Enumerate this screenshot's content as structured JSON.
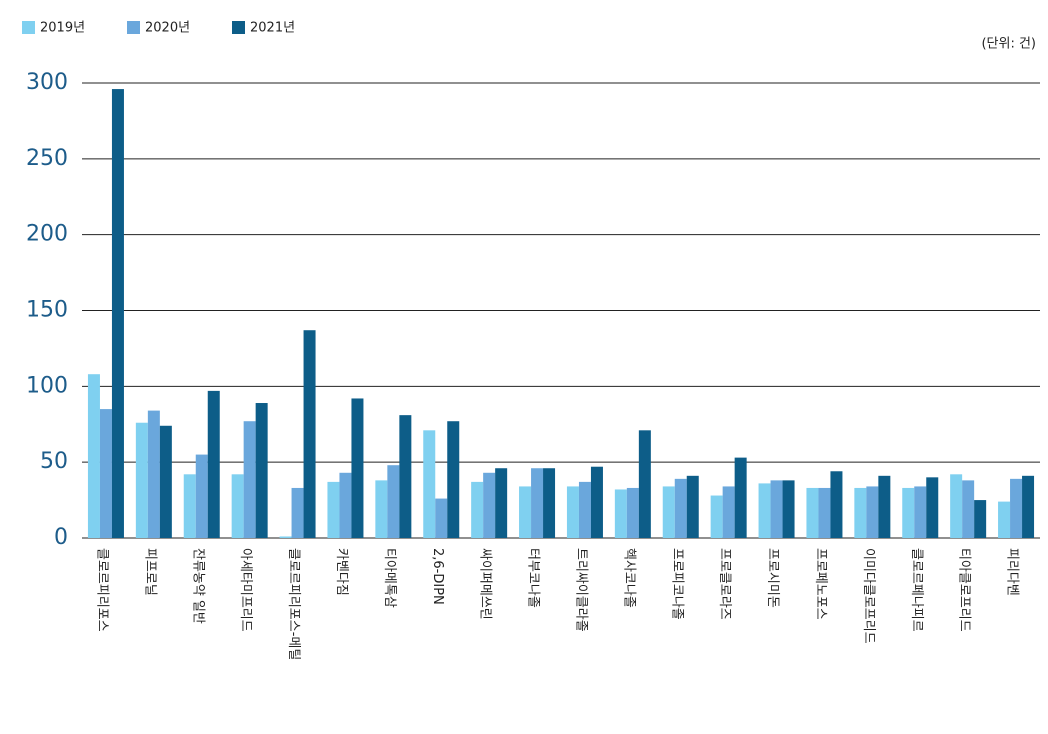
{
  "chart_data": {
    "type": "bar",
    "unit_label": "(단위: 건)",
    "categories": [
      "클로르피리포스",
      "피프로닐",
      "잔류농약 일반",
      "아세타미프리드",
      "클로르피리포스-메틸",
      "카벤다짐",
      "티아메톡삼",
      "2,6-DIPN",
      "싸이퍼메쓰린",
      "터부코나졸",
      "트리싸이클라졸",
      "헥사코나졸",
      "프로피코나졸",
      "프로클로라즈",
      "프로시미돈",
      "프로페노포스",
      "이미다클로프리드",
      "클로르페나피르",
      "티아클로프리드",
      "피리다벤"
    ],
    "series": [
      {
        "name": "2019년",
        "color": "#7fd0f0",
        "values": [
          108,
          76,
          42,
          42,
          1,
          37,
          38,
          71,
          37,
          34,
          34,
          32,
          34,
          28,
          36,
          33,
          33,
          33,
          42,
          24
        ]
      },
      {
        "name": "2020년",
        "color": "#6aa7dc",
        "values": [
          85,
          84,
          55,
          77,
          33,
          43,
          48,
          26,
          43,
          46,
          37,
          33,
          39,
          34,
          38,
          33,
          34,
          34,
          38,
          39
        ]
      },
      {
        "name": "2021년",
        "color": "#0d5d88",
        "values": [
          296,
          74,
          97,
          89,
          137,
          92,
          81,
          77,
          46,
          46,
          47,
          71,
          41,
          53,
          38,
          44,
          41,
          40,
          25,
          41
        ]
      }
    ],
    "ylim": [
      0,
      300
    ],
    "yticks": [
      0,
      50,
      100,
      150,
      200,
      250,
      300
    ],
    "grid": true,
    "legend": "top-left"
  }
}
